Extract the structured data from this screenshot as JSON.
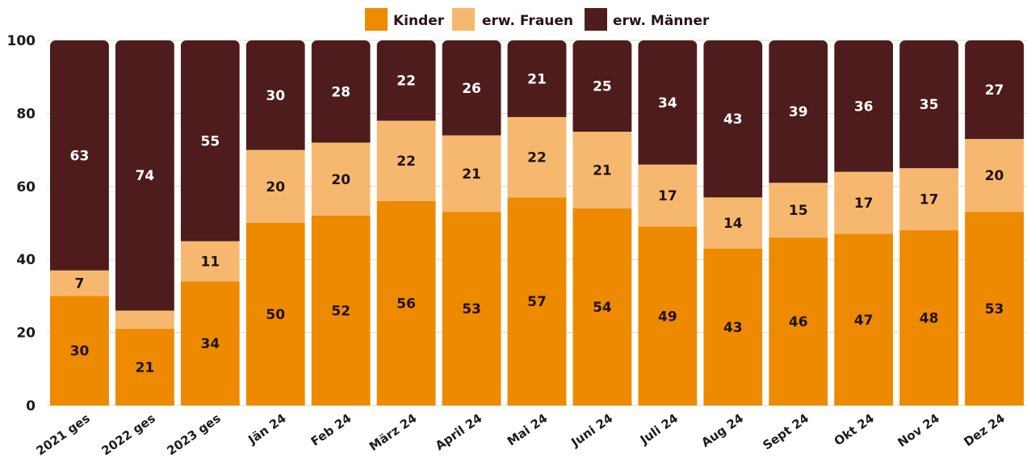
{
  "chart_data": {
    "type": "bar",
    "stacked": true,
    "orientation": "vertical",
    "categories": [
      "2021 ges",
      "2022 ges",
      "2023 ges",
      "Jän 24",
      "Feb 24",
      "März 24",
      "April 24",
      "Mai 24",
      "Juni 24",
      "Juli 24",
      "Aug 24",
      "Sept 24",
      "Okt 24",
      "Nov 24",
      "Dez 24"
    ],
    "series": [
      {
        "name": "Kinder",
        "color": "#ee8a00",
        "values": [
          30,
          21,
          34,
          50,
          52,
          56,
          53,
          57,
          54,
          49,
          43,
          46,
          47,
          48,
          53
        ]
      },
      {
        "name": "erw. Frauen",
        "color": "#f6b86f",
        "values": [
          7,
          5,
          11,
          20,
          20,
          22,
          21,
          22,
          21,
          17,
          14,
          15,
          17,
          17,
          20
        ]
      },
      {
        "name": "erw. Männer",
        "color": "#4e1c1c",
        "values": [
          63,
          74,
          55,
          30,
          28,
          22,
          26,
          21,
          25,
          34,
          43,
          39,
          36,
          35,
          27
        ]
      }
    ],
    "value_labels": [
      [
        "30",
        "7",
        "63"
      ],
      [
        "21",
        "",
        "74"
      ],
      [
        "34",
        "11",
        "55"
      ],
      [
        "50",
        "20",
        "30"
      ],
      [
        "52",
        "20",
        "28"
      ],
      [
        "56",
        "22",
        "22"
      ],
      [
        "53",
        "21",
        "26"
      ],
      [
        "57",
        "22",
        "21"
      ],
      [
        "54",
        "21",
        "25"
      ],
      [
        "49",
        "17",
        "34"
      ],
      [
        "43",
        "14",
        "43"
      ],
      [
        "46",
        "15",
        "39"
      ],
      [
        "47",
        "17",
        "36"
      ],
      [
        "48",
        "17",
        "35"
      ],
      [
        "53",
        "20",
        "27"
      ]
    ],
    "y_ticks": [
      "0",
      "20",
      "40",
      "60",
      "80",
      "100"
    ],
    "ylim": [
      0,
      100
    ],
    "title": "",
    "xlabel": "",
    "ylabel": "",
    "legend_position": "top-center",
    "grid": true
  }
}
